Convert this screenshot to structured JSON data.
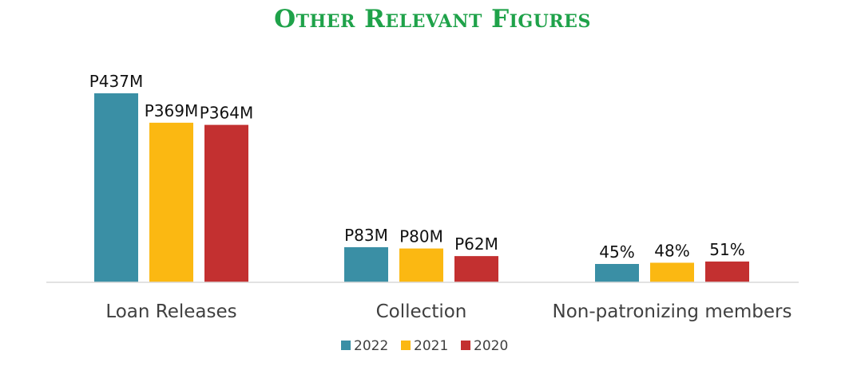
{
  "title": "Other Relevant Figures",
  "chart_data": {
    "type": "bar",
    "title": "Other Relevant Figures",
    "categories": [
      "Loan Releases",
      "Collection",
      "Non-patronizing members"
    ],
    "series": [
      {
        "name": "2022",
        "color": "#3a8fa5",
        "values": [
          437,
          83,
          45
        ],
        "labels": [
          "P437M",
          "P83M",
          "45%"
        ]
      },
      {
        "name": "2021",
        "color": "#fbb812",
        "values": [
          369,
          80,
          48
        ],
        "labels": [
          "P369M",
          "P80M",
          "48%"
        ]
      },
      {
        "name": "2020",
        "color": "#c33030",
        "values": [
          364,
          62,
          51
        ],
        "labels": [
          "P364M",
          "P62M",
          "51%"
        ]
      }
    ],
    "grid": false,
    "legend_position": "bottom"
  }
}
